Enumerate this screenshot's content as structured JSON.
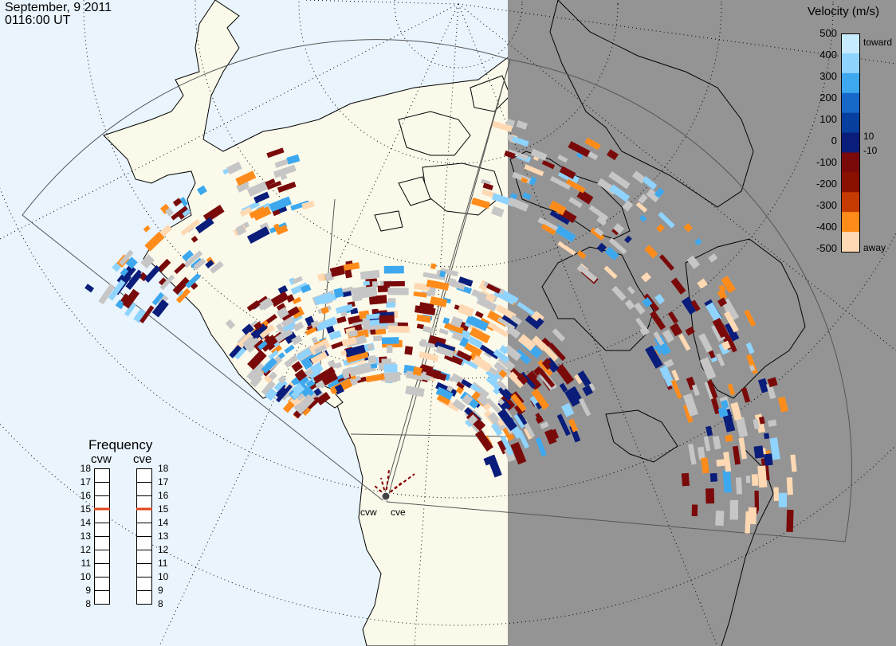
{
  "header": {
    "date": "September, 9 2011",
    "time": "0116:00 UT"
  },
  "colorbar": {
    "title": "Velocity (m/s)",
    "ticks": [
      "500",
      "400",
      "300",
      "200",
      "100",
      "0",
      "-100",
      "-200",
      "-300",
      "-400",
      "-500"
    ],
    "inner_pos": "10",
    "inner_neg": "-10",
    "label_toward": "toward",
    "label_away": "away",
    "colors": [
      "#c8ecff",
      "#8fd3ff",
      "#3da8ee",
      "#1668c9",
      "#063f9e",
      "#0a1d7a",
      "#7a0a0a",
      "#8a1000",
      "#c43a00",
      "#ff8c1a",
      "#ffd9b3"
    ]
  },
  "frequency": {
    "title": "Frequency",
    "left_label": "cvw",
    "right_label": "cve",
    "scale": [
      "18",
      "17",
      "16",
      "15",
      "14",
      "13",
      "12",
      "11",
      "10",
      "9",
      "8"
    ],
    "cvw_mhz": 15,
    "cve_mhz": 15
  },
  "radar_sites": [
    {
      "id": "cvw",
      "label": "cvw"
    },
    {
      "id": "cve",
      "label": "cve"
    }
  ],
  "colors": {
    "ocean": "#e9f4fd",
    "land": "#fbfaea",
    "night": "#949494",
    "groundscatter": "#c6c6c6",
    "freq_marker": "#e0441c"
  }
}
